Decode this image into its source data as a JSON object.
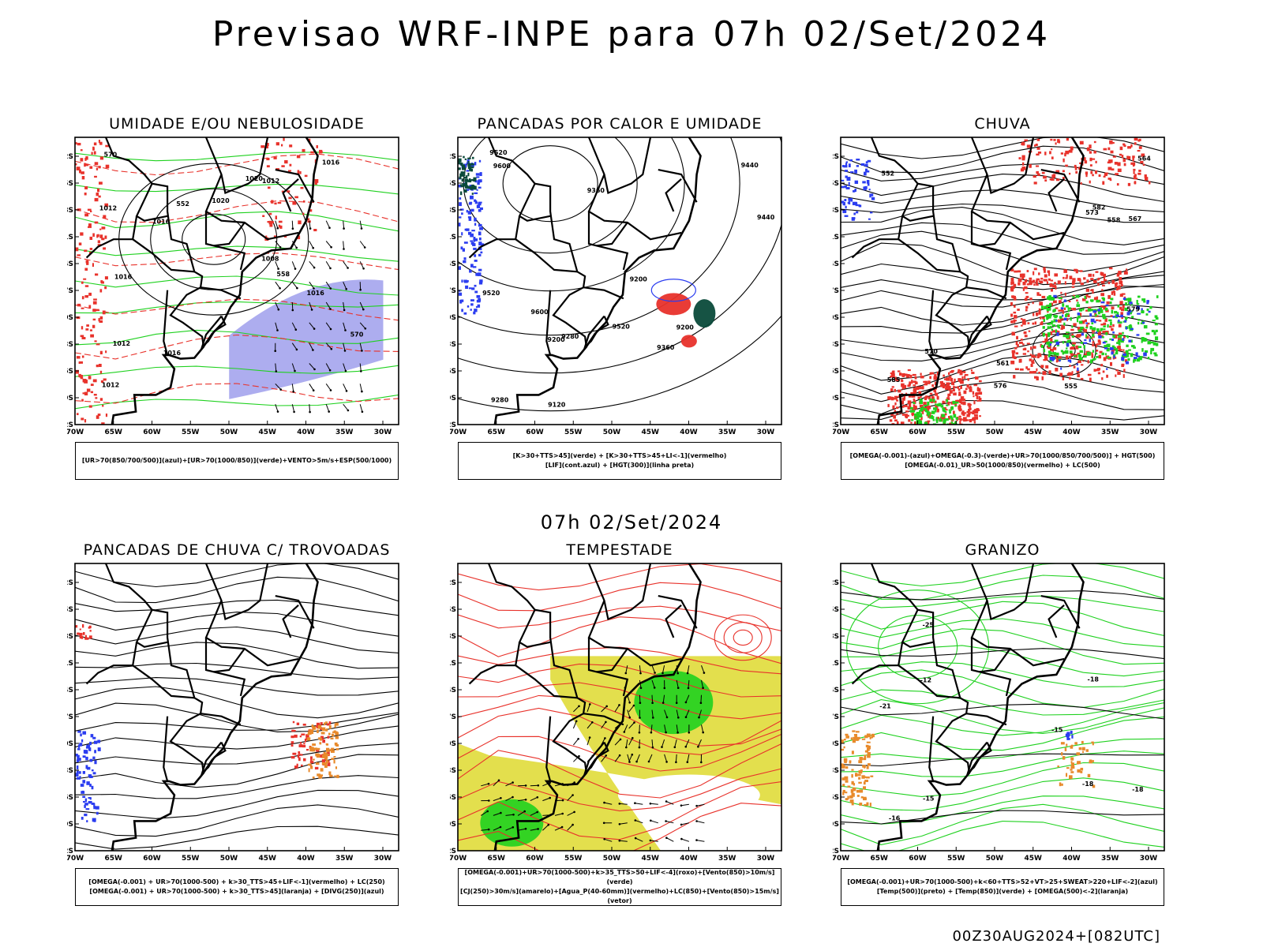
{
  "title": "Previsao WRF-INPE  para 07h 02/Set/2024",
  "subtitle_date": "07h 02/Set/2024",
  "run_info": "00Z30AUG2024+[082UTC]",
  "axes": {
    "lat_labels": [
      "12S",
      "15S",
      "18S",
      "21S",
      "24S",
      "27S",
      "30S",
      "33S",
      "36S",
      "39S",
      "42S"
    ],
    "lon_labels": [
      "70W",
      "65W",
      "60W",
      "55W",
      "50W",
      "45W",
      "40W",
      "35W",
      "30W"
    ]
  },
  "colors": {
    "red": "#e8322b",
    "green": "#1fd11f",
    "blue": "#2b3df0",
    "orange": "#e88a2b",
    "yellow": "#e0dc3a",
    "darkgreen": "#0a4a3a",
    "lavender": "#8a8ae8"
  },
  "panels": [
    {
      "id": "umidade",
      "title": "UMIDADE E/OU NEBULOSIDADE",
      "legend": [
        "[UR>70(850/700/500)](azul)+[UR>70(1000/850)](verde)+VENTO>5m/s+ESP(500/1000)"
      ],
      "contour_labels": [
        "1012",
        "1016",
        "1016",
        "1020",
        "1016",
        "1012",
        "1016",
        "1008",
        "1012",
        "1020",
        "1016",
        "1012",
        "570",
        "570",
        "558",
        "552"
      ]
    },
    {
      "id": "pancadas-calor",
      "title": "PANCADAS POR CALOR E UMIDADE",
      "legend": [
        "[K>30+TTS>45](verde) + [K>30+TTS>45+LI<-1](vermelho)",
        "[LIF](cont.azul) + [HGT(300)](linha preta)"
      ],
      "contour_labels": [
        "9600",
        "9520",
        "9520",
        "9440",
        "9440",
        "9360",
        "9360",
        "9280",
        "9280",
        "9200",
        "9200",
        "9200",
        "9120",
        "9600",
        "9520"
      ]
    },
    {
      "id": "chuva",
      "title": "CHUVA",
      "legend": [
        "[OMEGA(-0.001)-(azul)+OMEGA(-0.3)-(verde)+UR>70(1000/850/700/500)] + HGT(500)",
        "[OMEGA(-0.01)_UR>50(1000/850)(vermelho) + LC(500)"
      ],
      "contour_labels": [
        "585",
        "582",
        "579",
        "576",
        "573",
        "570",
        "567",
        "564",
        "561",
        "558",
        "555",
        "552"
      ]
    },
    {
      "id": "pancadas-trovoadas",
      "title": "PANCADAS DE CHUVA C/ TROVOADAS",
      "legend": [
        "[OMEGA(-0.001) + UR>70(1000-500) + k>30_TTS>45+LIF<-1](vermelho) + LC(250)",
        "[OMEGA(-0.001) + UR>70(1000-500) + k>30_TTS>45](laranja) + [DIVG(250)](azul)"
      ],
      "contour_labels": []
    },
    {
      "id": "tempestade",
      "title": "TEMPESTADE",
      "legend": [
        "[OMEGA(-0.001)+UR>70(1000-500)+k>35_TTS>50+LIF<-4](roxo)+[Vento(850)>10m/s](verde)",
        "[CJ(250)>30m/s](amarelo)+[Agua_P(40-60mm)](vermelho)+LC(850)+[Vento(850)>15m/s](vetor)"
      ],
      "contour_labels": []
    },
    {
      "id": "granizo",
      "title": "GRANIZO",
      "legend": [
        "[OMEGA(-0.001)+UR>70(1000-500)+k<60+TTS>52+VT>25+SWEAT>220+LIF<-2](azul)",
        "[Temp(500)](preto) + [Temp(850)](verde) + [OMEGA(500)<-2](laranja)"
      ],
      "contour_labels": [
        "-12",
        "-15",
        "-18",
        "-21",
        "-25",
        "-18",
        "-15",
        "-16",
        "-18"
      ]
    }
  ]
}
